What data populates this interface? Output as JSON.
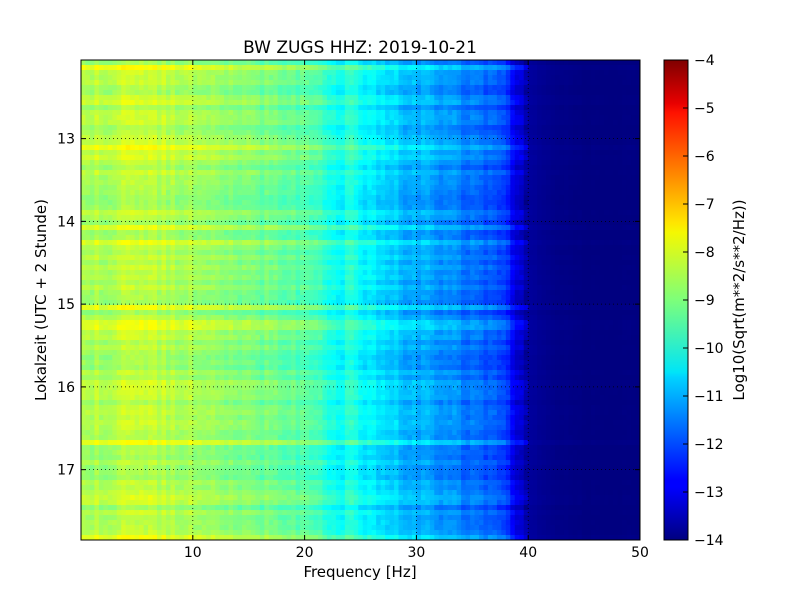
{
  "chart_data": {
    "type": "heatmap",
    "title": "BW ZUGS HHZ: 2019-10-21",
    "xlabel": "Frequency [Hz]",
    "ylabel": "Lokalzeit (UTC + 2 Stunde)",
    "xlim": [
      0,
      50
    ],
    "ylim": [
      17.85,
      12.05
    ],
    "x_ticks": [
      10,
      20,
      30,
      40,
      50
    ],
    "y_ticks": [
      13,
      14,
      15,
      16,
      17
    ],
    "grid": true,
    "colormap": "jet",
    "colorbar": {
      "label": "Log10(Sqrt(m**2/s**2/Hz))",
      "range": [
        -14,
        -4
      ],
      "ticks": [
        -4,
        -5,
        -6,
        -7,
        -8,
        -9,
        -10,
        -11,
        -12,
        -13,
        -14
      ]
    },
    "profile": {
      "frequency_hz": [
        0,
        5,
        10,
        15,
        20,
        22,
        25,
        28,
        30,
        33,
        36,
        38,
        39,
        40,
        42,
        45,
        50
      ],
      "level_log10": [
        -8.7,
        -8.4,
        -8.6,
        -9.0,
        -9.5,
        -9.9,
        -10.4,
        -10.8,
        -11.1,
        -11.4,
        -11.8,
        -12.3,
        -13.0,
        -13.7,
        -13.9,
        -14.0,
        -14.0
      ]
    }
  }
}
